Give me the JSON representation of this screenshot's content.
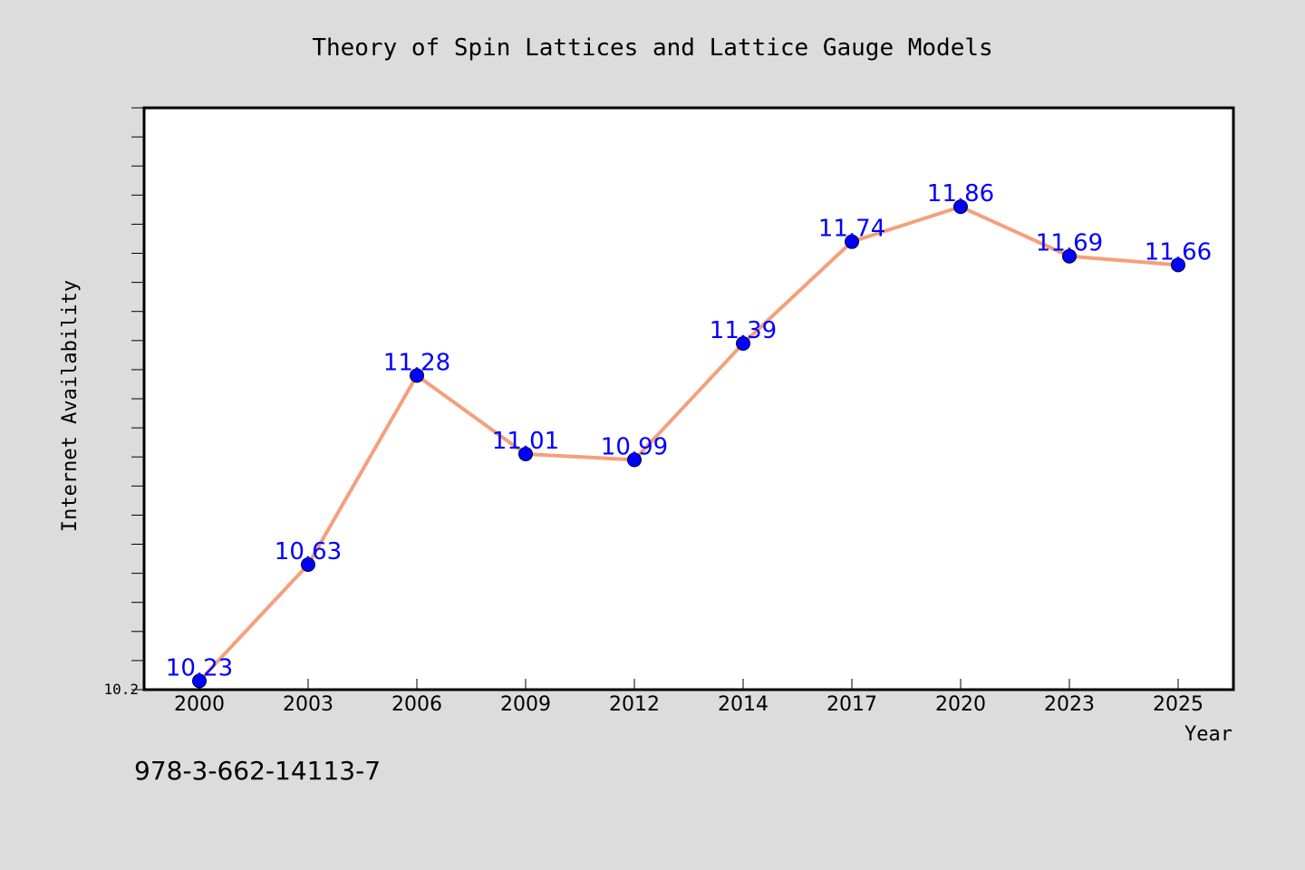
{
  "chart_data": {
    "type": "line",
    "title": "Theory of Spin Lattices and Lattice Gauge Models",
    "xlabel": "Year",
    "ylabel": "Internet Availability",
    "categories": [
      "2000",
      "2003",
      "2006",
      "2009",
      "2012",
      "2014",
      "2017",
      "2020",
      "2023",
      "2025"
    ],
    "series": [
      {
        "values": [
          10.23,
          10.63,
          11.28,
          11.01,
          10.99,
          11.39,
          11.74,
          11.86,
          11.69,
          11.66
        ],
        "labels": [
          "10.23",
          "10.63",
          "11.28",
          "11.01",
          "10.99",
          "11.39",
          "11.74",
          "11.86",
          "11.69",
          "11.66"
        ]
      }
    ],
    "ylim": [
      10.2,
      12.2
    ],
    "yticks_minor_step": 0.1,
    "ytick_labels": [
      "10.2"
    ],
    "grid": false,
    "line_color": "#f4a07c",
    "marker_color": "#0000ff",
    "label_color": "#0000ff"
  },
  "footer": {
    "isbn": "978-3-662-14113-7"
  }
}
